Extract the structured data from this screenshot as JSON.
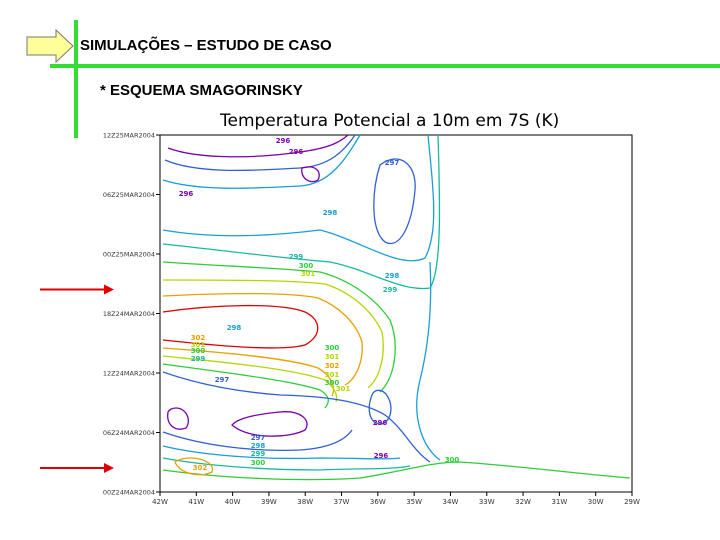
{
  "slide": {
    "title": "SIMULAÇÕES – ESTUDO DE CASO",
    "subtitle": "* ESQUEMA SMAGORINSKY"
  },
  "colors": {
    "accent_bar": "#33dd33",
    "arrow_fill": "#ffff99",
    "marker_arrow": "#e00000"
  },
  "chart_data": {
    "type": "contour",
    "title": "Temperatura Potencial a 10m em 7S (K)",
    "xlabel": "",
    "ylabel": "",
    "x_ticks": [
      "42W",
      "41W",
      "40W",
      "39W",
      "38W",
      "37W",
      "36W",
      "35W",
      "34W",
      "33W",
      "32W",
      "31W",
      "30W",
      "29W"
    ],
    "y_ticks": [
      "12Z25MAR2004",
      "06Z25MAR2004",
      "00Z25MAR2004",
      "18Z24MAR2004",
      "12Z24MAR2004",
      "06Z24MAR2004",
      "00Z24MAR2004"
    ],
    "contour_levels_k": [
      296,
      297,
      298,
      299,
      300,
      301,
      302
    ],
    "contour_labels": [
      "296",
      "296",
      "297",
      "296",
      "298",
      "299",
      "300",
      "301",
      "298",
      "299",
      "300",
      "301",
      "302",
      "301",
      "300",
      "301",
      "302",
      "301",
      "300",
      "299",
      "298",
      "297",
      "296",
      "297",
      "298",
      "299",
      "300",
      "296",
      "300",
      "302"
    ],
    "marked_times": [
      "18Z24MAR2004",
      "00Z24MAR2004"
    ],
    "grid": false
  }
}
